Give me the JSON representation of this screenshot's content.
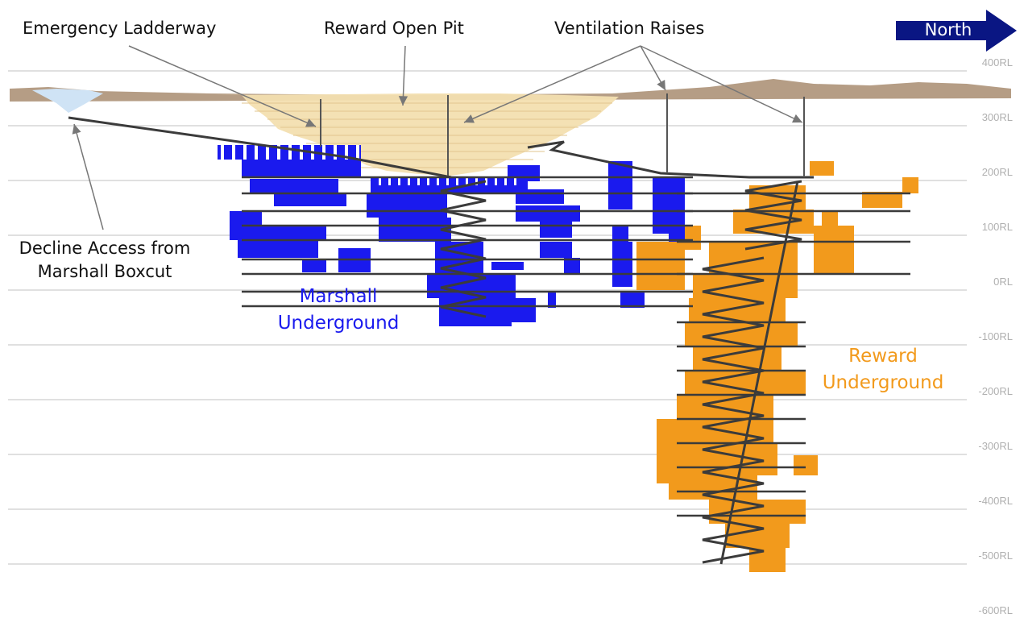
{
  "colors": {
    "marshall": "#1a1aee",
    "reward": "#f29a1c",
    "decline": "#3b3b3b",
    "grid": "#d6d6d6",
    "surface": "#a88c70",
    "pit": "#f3dfb0",
    "north_arrow": "#0a1683"
  },
  "north": {
    "label": "North",
    "icon": "arrow-right-icon"
  },
  "annotations": {
    "emergency_ladderway": "Emergency Ladderway",
    "reward_open_pit": "Reward Open Pit",
    "ventilation_raises": "Ventilation Raises",
    "decline_access_line1": "Decline Access from",
    "decline_access_line2": "Marshall Boxcut"
  },
  "zones": {
    "marshall_line1": "Marshall",
    "marshall_line2": "Underground",
    "reward_line1": "Reward",
    "reward_line2": "Underground"
  },
  "rl_levels": [
    "400RL",
    "300RL",
    "200RL",
    "100RL",
    "0RL",
    "-100RL",
    "-200RL",
    "-300RL",
    "-400RL",
    "-500RL",
    "-600RL"
  ]
}
